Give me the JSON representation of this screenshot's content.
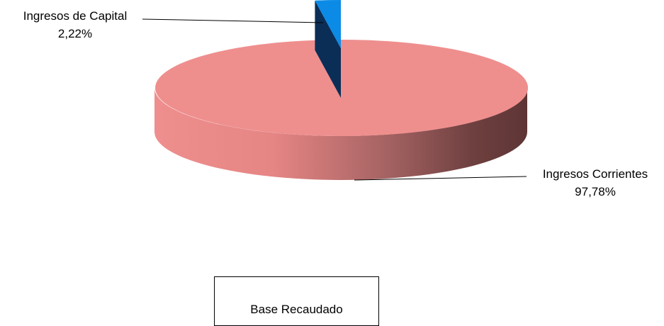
{
  "chart_data": {
    "type": "pie",
    "style": "3d",
    "slices": [
      {
        "label": "Ingresos Corrientes",
        "value_text": "97,78%",
        "value": 97.78,
        "color": "#ee8f8e",
        "side_dark": "#663a3a",
        "exploded": false
      },
      {
        "label": "Ingresos de Capital",
        "value_text": "2,22%",
        "value": 2.22,
        "color": "#0b8be6",
        "side_dark": "#0b2e57",
        "exploded": true
      }
    ],
    "legend": {
      "label": "Base Recaudado",
      "placement": "bottom-center"
    }
  }
}
